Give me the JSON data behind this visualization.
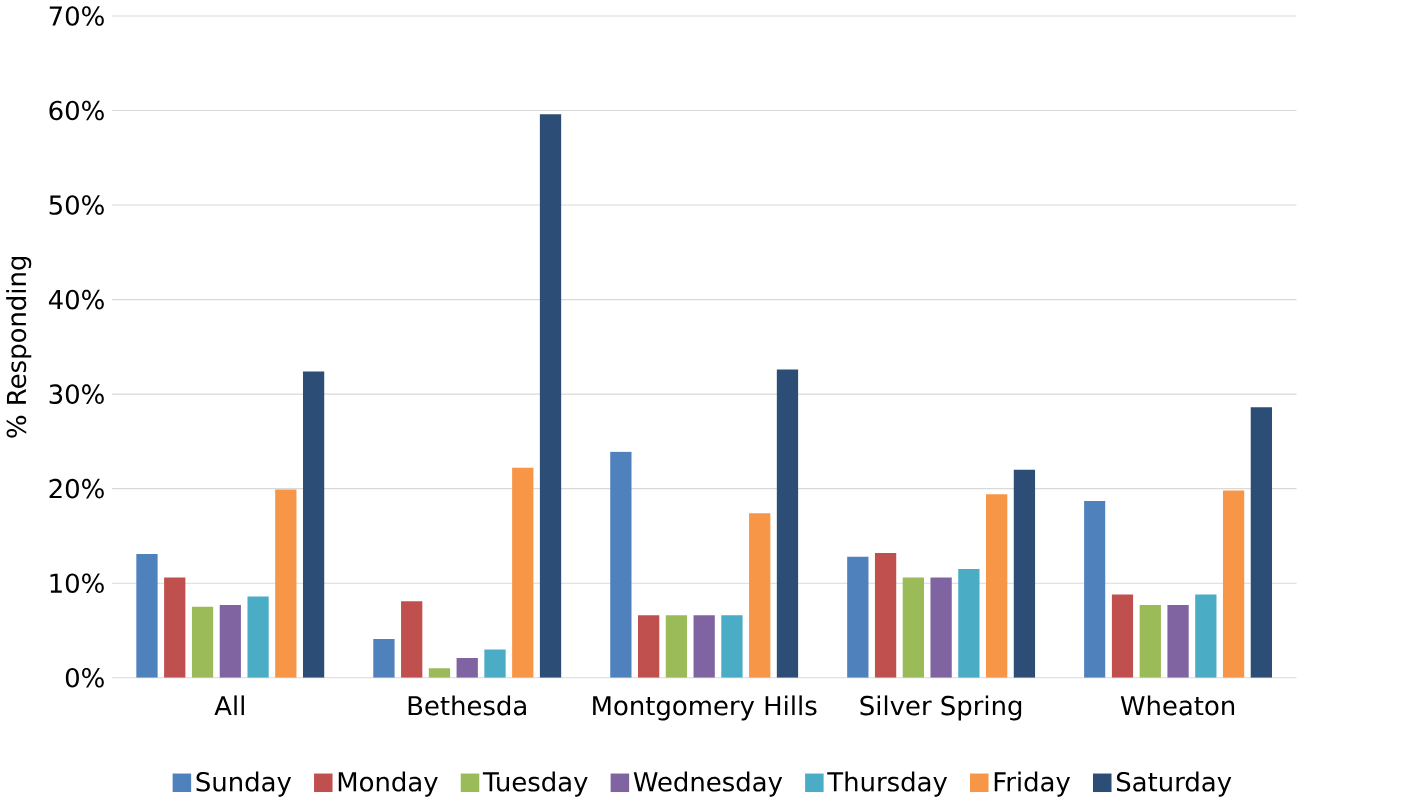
{
  "chart_data": {
    "type": "bar",
    "ylabel": "% Responding",
    "categories": [
      "All",
      "Bethesda",
      "Montgomery Hills",
      "Silver Spring",
      "Wheaton"
    ],
    "series": [
      {
        "name": "Sunday",
        "color": "#4f81bd",
        "values": [
          13.1,
          4.1,
          23.9,
          12.8,
          18.7
        ]
      },
      {
        "name": "Monday",
        "color": "#c0504d",
        "values": [
          10.6,
          8.1,
          6.6,
          13.2,
          8.8
        ]
      },
      {
        "name": "Tuesday",
        "color": "#9bbb59",
        "values": [
          7.5,
          1.0,
          6.6,
          10.6,
          7.7
        ]
      },
      {
        "name": "Wednesday",
        "color": "#8064a2",
        "values": [
          7.7,
          2.1,
          6.6,
          10.6,
          7.7
        ]
      },
      {
        "name": "Thursday",
        "color": "#4bacc6",
        "values": [
          8.6,
          3.0,
          6.6,
          11.5,
          8.8
        ]
      },
      {
        "name": "Friday",
        "color": "#f79646",
        "values": [
          19.9,
          22.2,
          17.4,
          19.4,
          19.8
        ]
      },
      {
        "name": "Saturday",
        "color": "#2c4d75",
        "values": [
          32.4,
          59.6,
          32.6,
          22.0,
          28.6
        ]
      }
    ],
    "ylim": [
      0,
      70
    ],
    "yticks": [
      {
        "value": 0,
        "label": "0%"
      },
      {
        "value": 10,
        "label": "10%"
      },
      {
        "value": 20,
        "label": "20%"
      },
      {
        "value": 30,
        "label": "30%"
      },
      {
        "value": 40,
        "label": "40%"
      },
      {
        "value": 50,
        "label": "50%"
      },
      {
        "value": 60,
        "label": "60%"
      },
      {
        "value": 70,
        "label": "70%"
      }
    ],
    "grid": "y",
    "legend": "bottom"
  }
}
